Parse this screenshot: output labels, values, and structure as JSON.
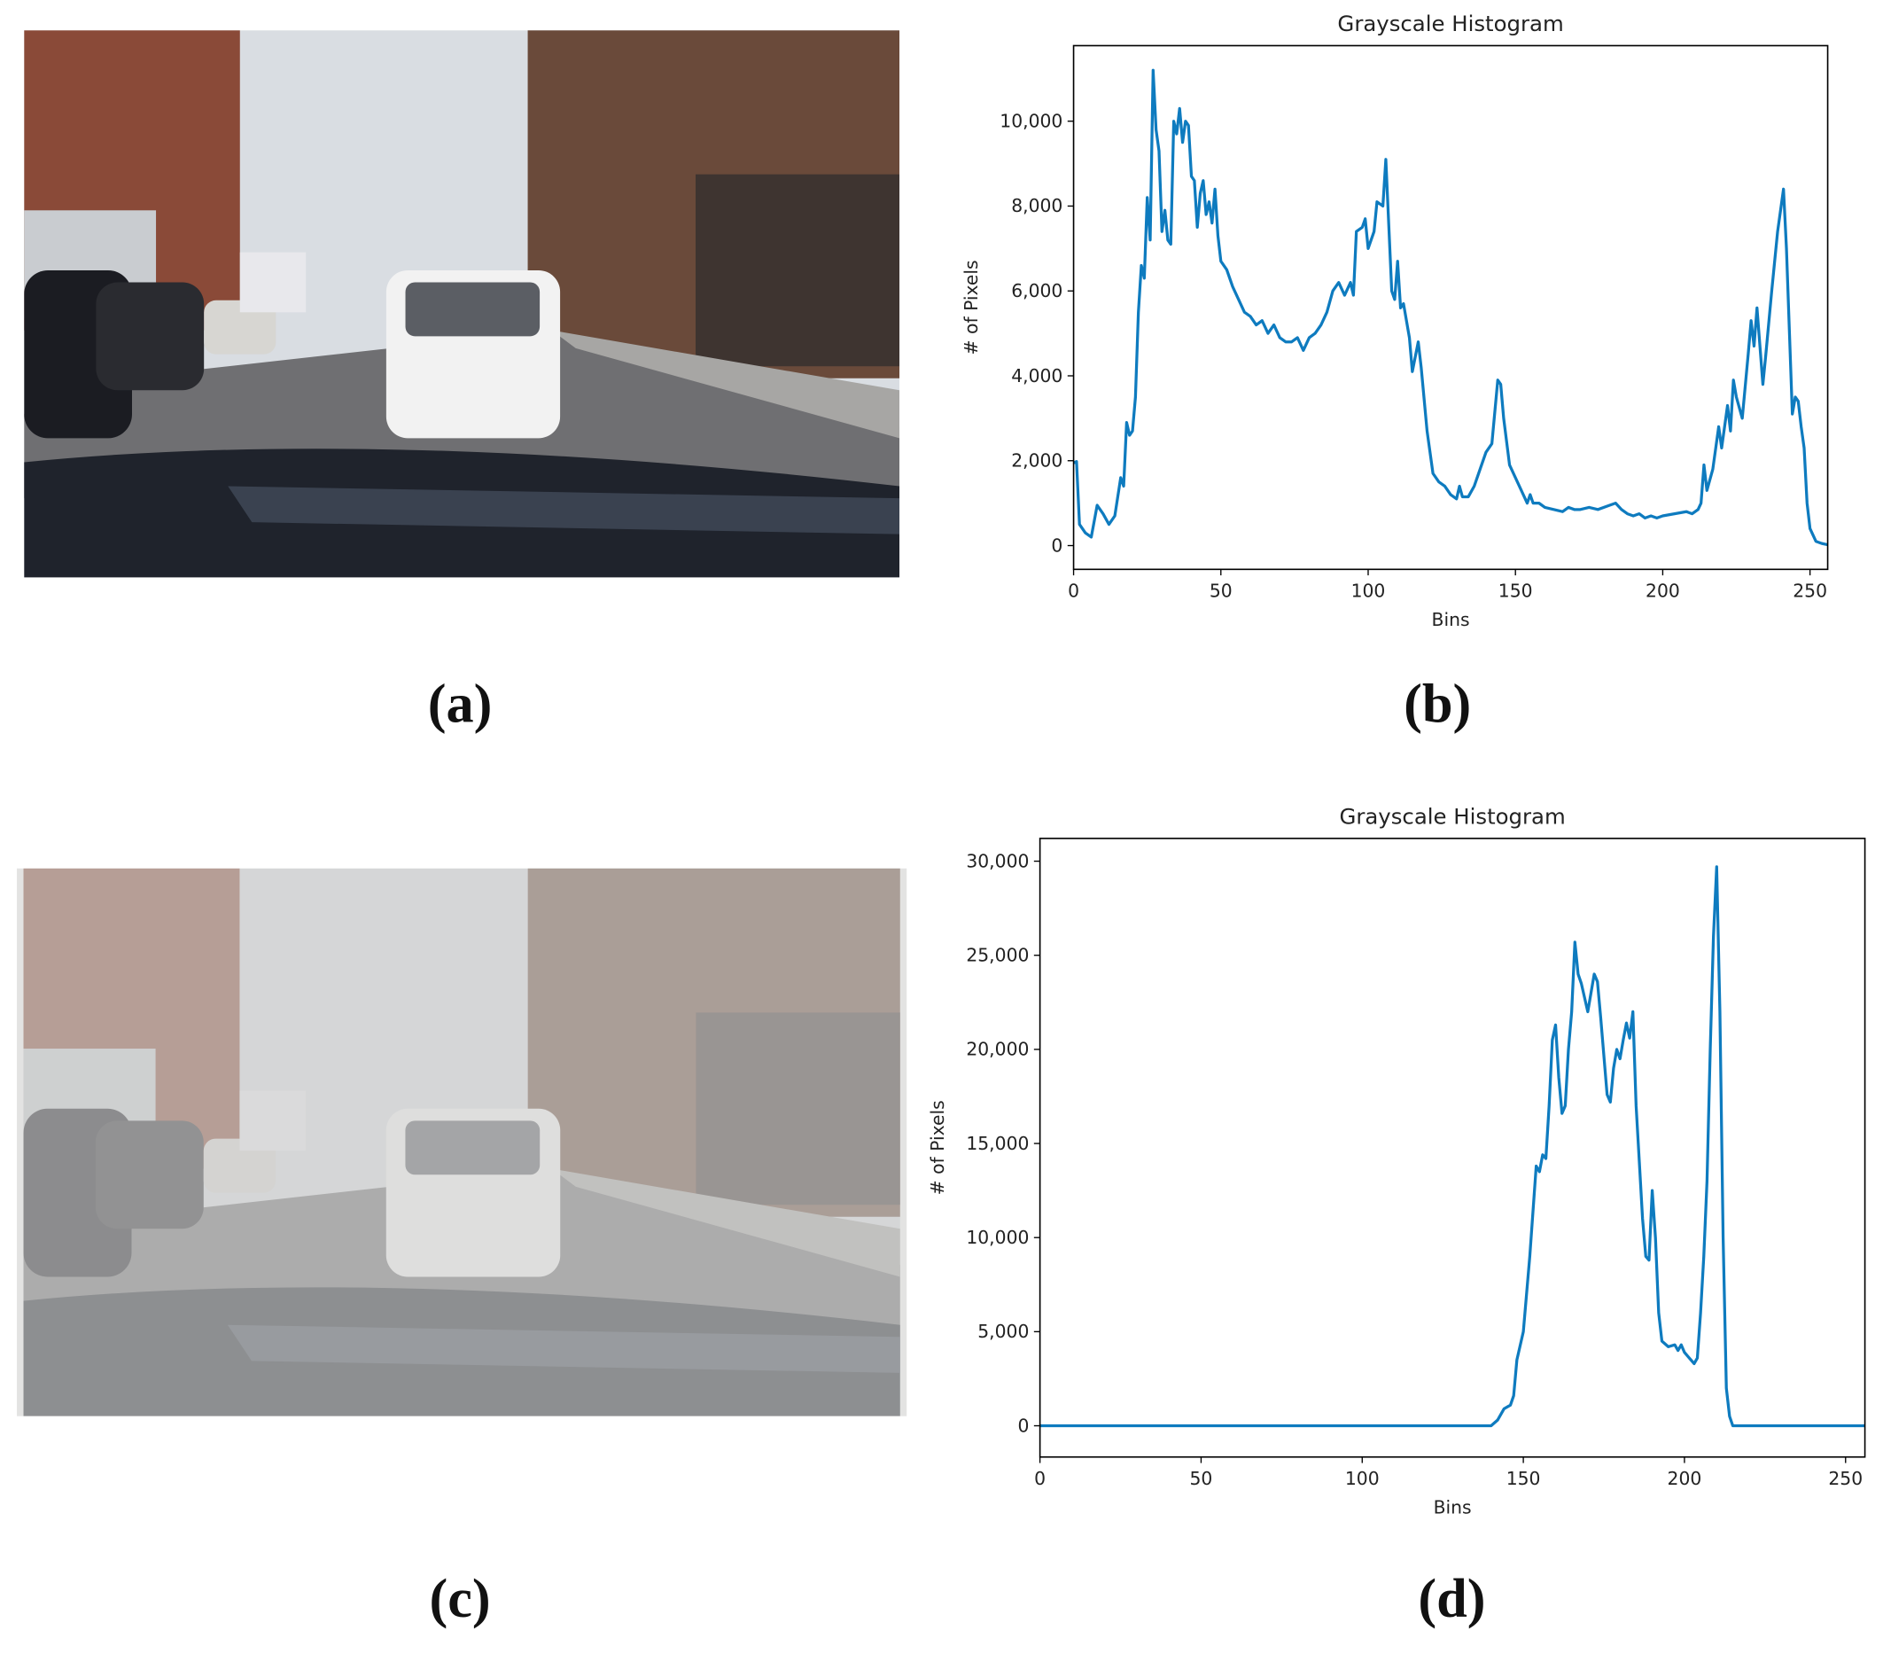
{
  "chart_data": [
    {
      "type": "line",
      "title": "Grayscale Histogram",
      "x_label": "Bins",
      "y_label": "# of Pixels",
      "xlim": [
        0,
        256
      ],
      "ylim": [
        -560,
        11780
      ],
      "xticks": [
        0,
        50,
        100,
        150,
        200,
        250
      ],
      "yticks": [
        0,
        {
          "value": 2000,
          "label": "2,000"
        },
        {
          "value": 4000,
          "label": "4,000"
        },
        {
          "value": 6000,
          "label": "6,000"
        },
        {
          "value": 8000,
          "label": "8,000"
        },
        {
          "value": 10000,
          "label": "10,000"
        }
      ],
      "color": "#0e7bbf",
      "x": [
        0,
        1,
        2,
        4,
        6,
        8,
        10,
        12,
        14,
        16,
        17,
        18,
        19,
        20,
        21,
        22,
        23,
        24,
        25,
        26,
        27,
        28,
        29,
        30,
        31,
        32,
        33,
        34,
        35,
        36,
        37,
        38,
        39,
        40,
        41,
        42,
        43,
        44,
        45,
        46,
        47,
        48,
        49,
        50,
        52,
        54,
        56,
        58,
        60,
        62,
        64,
        66,
        68,
        70,
        72,
        74,
        76,
        78,
        80,
        82,
        84,
        86,
        88,
        90,
        92,
        94,
        95,
        96,
        98,
        99,
        100,
        102,
        103,
        105,
        106,
        108,
        109,
        110,
        111,
        112,
        114,
        115,
        117,
        118,
        120,
        122,
        124,
        126,
        128,
        130,
        131,
        132,
        134,
        136,
        138,
        140,
        142,
        144,
        145,
        146,
        148,
        150,
        152,
        154,
        155,
        156,
        158,
        160,
        163,
        166,
        168,
        170,
        172,
        175,
        178,
        182,
        184,
        186,
        188,
        190,
        192,
        194,
        196,
        198,
        200,
        204,
        208,
        210,
        212,
        213,
        214,
        215,
        217,
        219,
        220,
        222,
        223,
        224,
        225,
        227,
        229,
        230,
        231,
        232,
        234,
        235,
        237,
        239,
        241,
        242,
        244,
        245,
        246,
        247,
        248,
        249,
        250,
        252,
        254,
        256
      ],
      "values": [
        1950,
        1980,
        500,
        300,
        200,
        950,
        750,
        500,
        700,
        1600,
        1400,
        2900,
        2600,
        2700,
        3500,
        5500,
        6600,
        6300,
        8200,
        7200,
        11200,
        9800,
        9300,
        7400,
        7900,
        7200,
        7100,
        10000,
        9700,
        10300,
        9500,
        10000,
        9900,
        8700,
        8600,
        7500,
        8300,
        8600,
        7800,
        8100,
        7600,
        8400,
        7300,
        6700,
        6500,
        6100,
        5800,
        5500,
        5400,
        5200,
        5300,
        5000,
        5200,
        4900,
        4800,
        4800,
        4900,
        4600,
        4900,
        5000,
        5200,
        5500,
        6000,
        6200,
        5900,
        6200,
        5900,
        7400,
        7500,
        7700,
        7000,
        7400,
        8100,
        8000,
        9100,
        6000,
        5800,
        6700,
        5600,
        5700,
        4900,
        4100,
        4800,
        4200,
        2700,
        1700,
        1500,
        1400,
        1200,
        1100,
        1400,
        1150,
        1150,
        1400,
        1800,
        2200,
        2400,
        3900,
        3800,
        3000,
        1900,
        1600,
        1300,
        1000,
        1200,
        1000,
        1000,
        900,
        850,
        800,
        900,
        850,
        850,
        900,
        850,
        950,
        1000,
        850,
        750,
        700,
        750,
        650,
        700,
        650,
        700,
        750,
        800,
        750,
        850,
        1000,
        1900,
        1300,
        1800,
        2800,
        2300,
        3300,
        2700,
        3900,
        3500,
        3000,
        4500,
        5300,
        4700,
        5600,
        3800,
        4500,
        6000,
        7400,
        8400,
        7000,
        3100,
        3500,
        3400,
        2800,
        2300,
        1000,
        400,
        100,
        50,
        20
      ]
    },
    {
      "type": "line",
      "title": "Grayscale Histogram",
      "x_label": "Bins",
      "y_label": "# of Pixels",
      "xlim": [
        0,
        256
      ],
      "ylim": [
        -1660,
        31210
      ],
      "xticks": [
        0,
        50,
        100,
        150,
        200,
        250
      ],
      "yticks": [
        0,
        {
          "value": 5000,
          "label": "5,000"
        },
        {
          "value": 10000,
          "label": "10,000"
        },
        {
          "value": 15000,
          "label": "15,000"
        },
        {
          "value": 20000,
          "label": "20,000"
        },
        {
          "value": 25000,
          "label": "25,000"
        },
        {
          "value": 30000,
          "label": "30,000"
        }
      ],
      "color": "#0e7bbf",
      "x": [
        0,
        140,
        142,
        144,
        146,
        147,
        148,
        150,
        152,
        154,
        155,
        156,
        157,
        158,
        159,
        160,
        161,
        162,
        163,
        164,
        165,
        166,
        167,
        168,
        170,
        171,
        172,
        173,
        174,
        176,
        177,
        178,
        179,
        180,
        181,
        182,
        183,
        184,
        185,
        186,
        187,
        188,
        189,
        190,
        191,
        192,
        193,
        195,
        197,
        198,
        199,
        200,
        202,
        203,
        204,
        205,
        206,
        207,
        208,
        209,
        210,
        211,
        212,
        213,
        214,
        215,
        256
      ],
      "values": [
        0,
        0,
        300,
        900,
        1100,
        1600,
        3500,
        5000,
        9000,
        13800,
        13500,
        14400,
        14200,
        17000,
        20500,
        21300,
        18500,
        16600,
        17000,
        20000,
        22000,
        25700,
        24000,
        23500,
        22000,
        23000,
        24000,
        23600,
        21700,
        17600,
        17200,
        19000,
        20000,
        19500,
        20500,
        21400,
        20600,
        22000,
        17000,
        14000,
        11000,
        9000,
        8800,
        12500,
        10000,
        6000,
        4500,
        4200,
        4300,
        4000,
        4300,
        3900,
        3500,
        3300,
        3600,
        6000,
        9000,
        13000,
        20000,
        26000,
        29700,
        22000,
        10000,
        2000,
        500,
        0,
        0
      ]
    }
  ],
  "captions": [
    "(a)",
    "(b)",
    "(c)",
    "(d)"
  ]
}
